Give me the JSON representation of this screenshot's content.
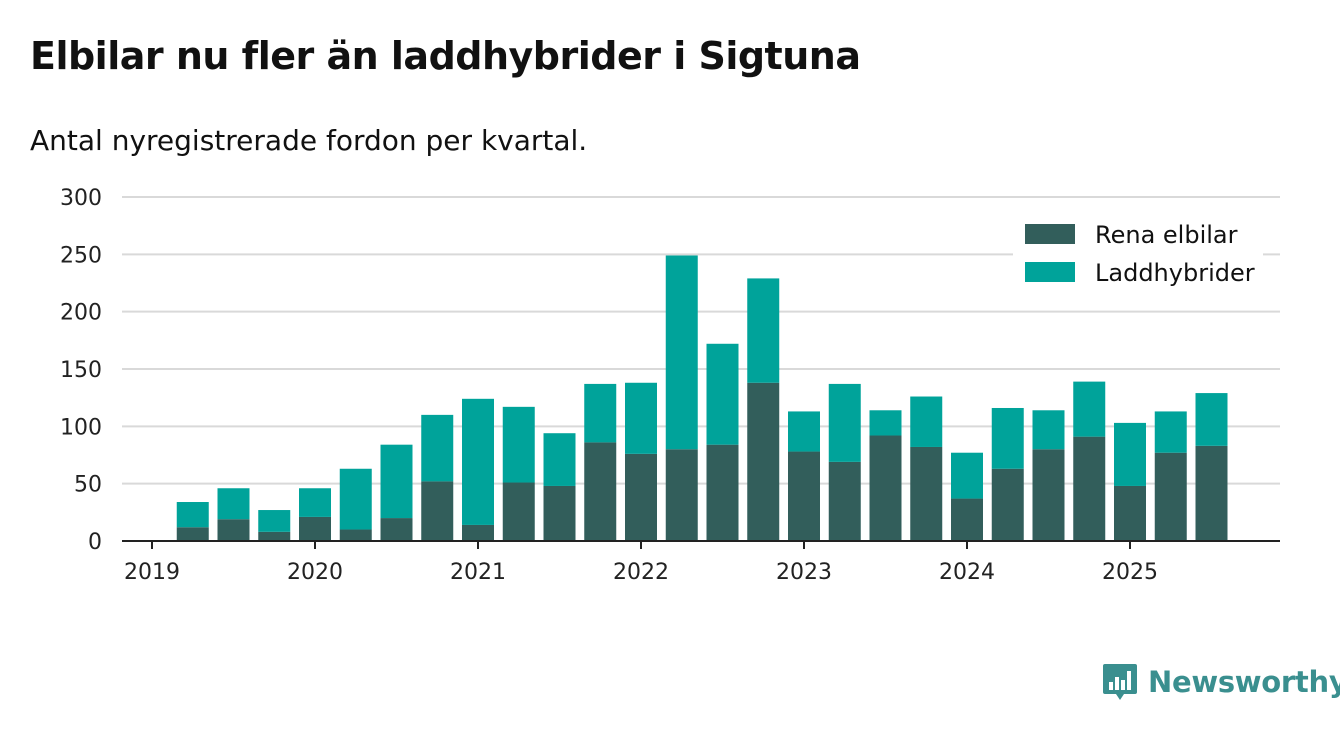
{
  "title": "Elbilar nu fler än laddhybrider i Sigtuna",
  "subtitle": "Antal nyregistrerade fordon per kvartal.",
  "brand": {
    "name": "Newsworthy",
    "icon": "bar-chart-logo-icon",
    "color": "#3a8f8f"
  },
  "chart_data": {
    "type": "bar",
    "stacked": true,
    "categories": [
      "2019-Q1",
      "2019-Q2",
      "2019-Q3",
      "2019-Q4",
      "2020-Q1",
      "2020-Q2",
      "2020-Q3",
      "2020-Q4",
      "2021-Q1",
      "2021-Q2",
      "2021-Q3",
      "2021-Q4",
      "2022-Q1",
      "2022-Q2",
      "2022-Q3",
      "2022-Q4",
      "2023-Q1",
      "2023-Q2",
      "2023-Q3",
      "2023-Q4",
      "2024-Q1",
      "2024-Q2",
      "2024-Q3",
      "2024-Q4",
      "2025-Q1",
      "2025-Q2",
      "2025-Q3"
    ],
    "x_tick_labels": [
      "2019",
      "2020",
      "2021",
      "2022",
      "2023",
      "2024",
      "2025"
    ],
    "series": [
      {
        "name": "Rena elbilar",
        "color": "#325e5b",
        "values": [
          0,
          12,
          19,
          8,
          21,
          10,
          20,
          52,
          14,
          51,
          48,
          86,
          76,
          80,
          84,
          138,
          78,
          69,
          92,
          82,
          37,
          63,
          80,
          91,
          48,
          77,
          83
        ]
      },
      {
        "name": "Laddhybrider",
        "color": "#00a39a",
        "values": [
          0,
          22,
          27,
          19,
          25,
          53,
          64,
          58,
          110,
          66,
          46,
          51,
          62,
          169,
          88,
          91,
          35,
          68,
          22,
          44,
          40,
          53,
          34,
          48,
          55,
          36,
          46
        ]
      }
    ],
    "ylim": [
      0,
      300
    ],
    "yticks": [
      0,
      50,
      100,
      150,
      200,
      250,
      300
    ],
    "grid": true,
    "legend_position": "top-right",
    "xlabel": "",
    "ylabel": ""
  }
}
